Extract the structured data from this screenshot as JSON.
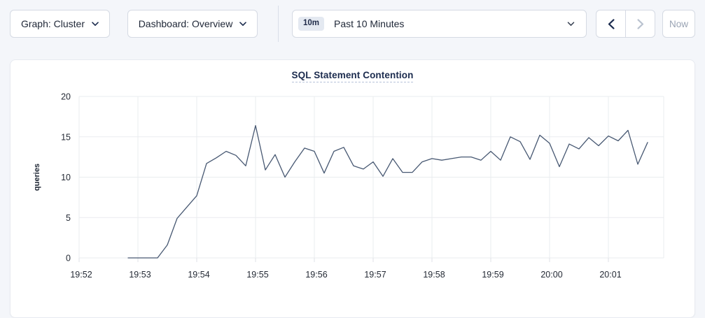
{
  "toolbar": {
    "graph_dropdown": {
      "label": "Graph: Cluster"
    },
    "dashboard_dropdown": {
      "label": "Dashboard: Overview"
    },
    "time_window": {
      "badge": "10m",
      "label": "Past 10 Minutes"
    },
    "now_button": "Now"
  },
  "chart_data": {
    "type": "line",
    "title": "SQL Statement Contention",
    "xlabel": "",
    "ylabel": "queries",
    "ylim": [
      0,
      20
    ],
    "yticks": [
      0,
      5,
      10,
      15,
      20
    ],
    "xtick_labels": [
      "19:52",
      "19:53",
      "19:54",
      "19:55",
      "19:56",
      "19:57",
      "19:58",
      "19:59",
      "20:00",
      "20:01"
    ],
    "x_axis_start": "19:52:00",
    "x_axis_end": "19:52:00 + 9m56s",
    "grid": true,
    "legend_position": "none",
    "line_color": "#475872",
    "grid_color": "#eaecef",
    "tick_label_color": "#242a35",
    "title_color": "#1b2b4e",
    "series": [
      {
        "name": "SQL Statement Contention",
        "unit": "queries",
        "start_time": "19:52:50",
        "interval_seconds": 10,
        "values": [
          0,
          0,
          0,
          0,
          1.6,
          4.9,
          6.3,
          7.7,
          11.7,
          12.4,
          13.2,
          12.7,
          11.4,
          16.4,
          10.9,
          12.8,
          10,
          11.9,
          13.6,
          13.2,
          10.5,
          13.2,
          13.7,
          11.4,
          11,
          11.9,
          10.1,
          12.3,
          10.6,
          10.6,
          11.9,
          12.3,
          12.1,
          12.3,
          12.5,
          12.5,
          12.1,
          13.2,
          12.1,
          15,
          14.4,
          12.2,
          15.2,
          14.2,
          11.3,
          14.1,
          13.5,
          14.9,
          13.9,
          15.1,
          14.5,
          15.8,
          11.6,
          14.3
        ]
      }
    ]
  }
}
